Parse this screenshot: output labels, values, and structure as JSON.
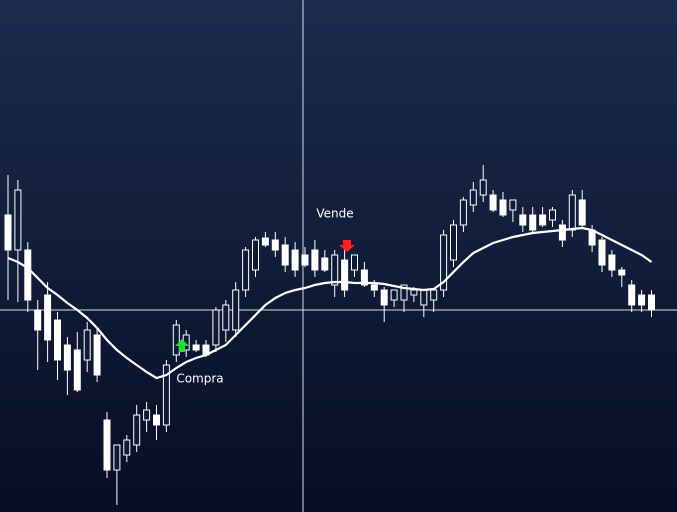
{
  "chart_data": {
    "type": "candlestick",
    "ylim": [
      0,
      512
    ],
    "open": [
      297,
      262,
      262,
      202,
      217,
      192,
      167,
      162,
      152,
      177,
      92,
      42,
      57,
      67,
      92,
      97,
      87,
      157,
      162,
      167,
      167,
      167,
      182,
      182,
      222,
      242,
      274,
      272,
      267,
      262,
      257,
      262,
      254,
      227,
      252,
      242,
      242,
      227,
      222,
      212,
      212,
      217,
      207,
      212,
      222,
      252,
      287,
      307,
      317,
      317,
      312,
      302,
      297,
      297,
      297,
      292,
      287,
      282,
      312,
      282,
      272,
      257,
      242,
      227,
      217,
      217
    ],
    "high": [
      337,
      332,
      270,
      212,
      230,
      200,
      175,
      180,
      190,
      185,
      100,
      67,
      77,
      107,
      110,
      107,
      152,
      192,
      182,
      172,
      172,
      205,
      212,
      230,
      265,
      275,
      280,
      280,
      275,
      270,
      265,
      272,
      262,
      262,
      262,
      257,
      250,
      232,
      225,
      222,
      227,
      225,
      222,
      222,
      282,
      292,
      315,
      330,
      347,
      322,
      320,
      312,
      305,
      305,
      305,
      305,
      292,
      322,
      322,
      287,
      275,
      262,
      245,
      232,
      222,
      222
    ],
    "low": [
      212,
      210,
      200,
      142,
      150,
      132,
      117,
      120,
      140,
      130,
      34,
      7,
      50,
      60,
      80,
      72,
      80,
      150,
      155,
      160,
      155,
      160,
      170,
      175,
      215,
      235,
      265,
      255,
      240,
      235,
      245,
      235,
      240,
      215,
      215,
      235,
      225,
      215,
      190,
      205,
      200,
      210,
      195,
      200,
      215,
      245,
      280,
      300,
      310,
      300,
      295,
      290,
      280,
      280,
      285,
      285,
      265,
      275,
      285,
      260,
      240,
      235,
      225,
      200,
      200,
      195
    ],
    "close": [
      262,
      322,
      212,
      182,
      172,
      152,
      142,
      122,
      182,
      137,
      42,
      67,
      72,
      97,
      102,
      87,
      147,
      187,
      177,
      162,
      157,
      202,
      207,
      222,
      262,
      272,
      267,
      262,
      247,
      242,
      247,
      242,
      242,
      257,
      222,
      257,
      227,
      222,
      207,
      222,
      227,
      222,
      222,
      222,
      277,
      287,
      312,
      322,
      332,
      302,
      297,
      312,
      287,
      282,
      287,
      302,
      272,
      317,
      287,
      267,
      247,
      242,
      237,
      207,
      207,
      202
    ],
    "moving_average": [
      254,
      250,
      244,
      234,
      224,
      217,
      209,
      202,
      194,
      184,
      172,
      162,
      154,
      147,
      140,
      134,
      137,
      144,
      150,
      154,
      157,
      162,
      167,
      177,
      187,
      197,
      207,
      214,
      219,
      222,
      224,
      227,
      229,
      230,
      230,
      229,
      229,
      229,
      228,
      226,
      224,
      223,
      222,
      223,
      230,
      240,
      250,
      259,
      264,
      269,
      272,
      275,
      277,
      279,
      280,
      281,
      282,
      283,
      284,
      282,
      277,
      272,
      267,
      262,
      257,
      250
    ],
    "annotations": [
      "Vende",
      "Compra"
    ]
  }
}
